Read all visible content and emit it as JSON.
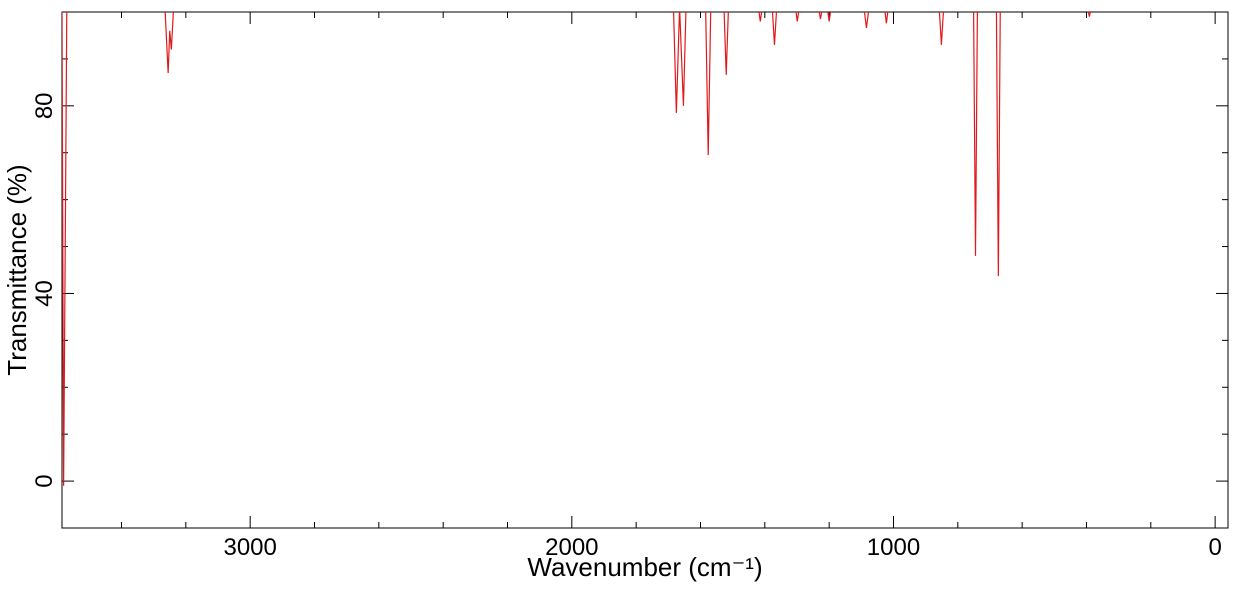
{
  "chart_data": {
    "type": "line",
    "x_label": "Wavenumber (cm⁻¹)",
    "y_label": "Transmittance (%)",
    "xlim": [
      3585,
      -40
    ],
    "ylim": [
      -10,
      100
    ],
    "xticks": [
      3000,
      2000,
      1000,
      0
    ],
    "xminorticks": [
      3400,
      3200,
      2800,
      2600,
      2400,
      2200,
      1800,
      1600,
      1400,
      1200,
      800,
      600,
      400,
      200
    ],
    "yticks": [
      0,
      40,
      80
    ],
    "yminorticks": [
      10,
      20,
      30,
      50,
      60,
      70,
      90
    ],
    "series": [
      {
        "color": "#e0191c",
        "x": [
          3585,
          3580,
          3570,
          3265,
          3255,
          3250,
          3245,
          3238,
          1684,
          1675,
          1665,
          1653,
          1645,
          1584,
          1576,
          1568,
          1527,
          1520,
          1513,
          1420,
          1414,
          1408,
          1377,
          1370,
          1363,
          1305,
          1299,
          1293,
          1233,
          1227,
          1221,
          1206,
          1200,
          1194,
          1092,
          1084,
          1076,
          1028,
          1022,
          1016,
          858,
          851,
          844,
          751,
          745,
          739,
          680,
          674,
          668,
          397,
          391,
          385,
          -40
        ],
        "values": [
          101,
          -1,
          101,
          101,
          87,
          96,
          92,
          101,
          101,
          78.5,
          101,
          80,
          101,
          101,
          69.5,
          101,
          101,
          86.6,
          101,
          101,
          98,
          101,
          101,
          93,
          101,
          101,
          98,
          101,
          101,
          98.5,
          101,
          101,
          98,
          101,
          101,
          96.6,
          101,
          101,
          97.6,
          101,
          101,
          93,
          101,
          101,
          48,
          101,
          101,
          43.7,
          101,
          101,
          99,
          101,
          101
        ]
      }
    ]
  }
}
